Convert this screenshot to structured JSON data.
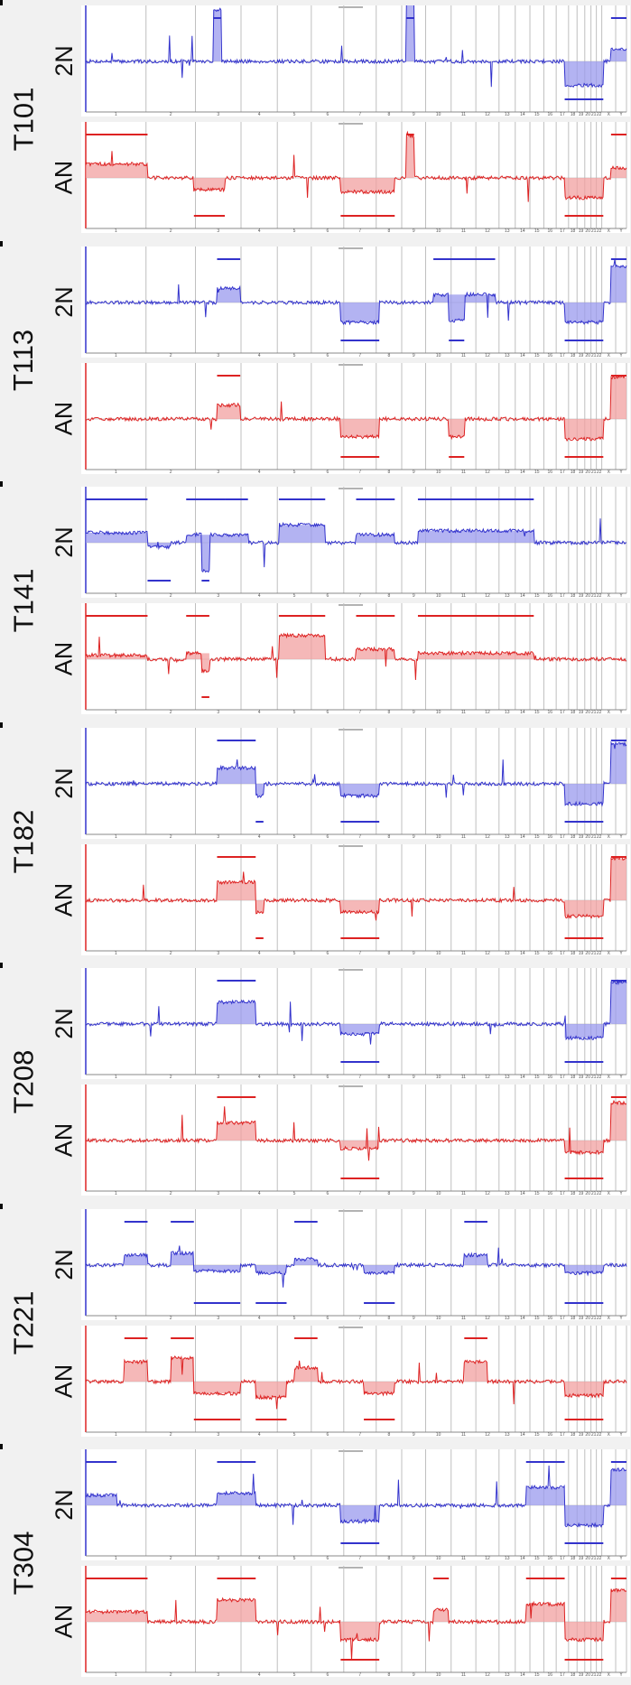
{
  "chart_data": {
    "type": "line",
    "description_of_layout": "",
    "chromosome_ticks": [
      "1",
      "2",
      "3",
      "4",
      "5",
      "6",
      "7",
      "8",
      "9",
      "10",
      "11",
      "12",
      "13",
      "14",
      "15",
      "16",
      "17",
      "18",
      "19",
      "20",
      "21",
      "22",
      "X",
      "Y"
    ],
    "series": [
      {
        "name": "2N",
        "color": "#3333cc",
        "fill": "#9a9aee"
      },
      {
        "name": "AN",
        "color": "#dd2222",
        "fill": "#f2a0a0"
      }
    ],
    "samples": [
      {
        "id": "T101",
        "rows": [
          {
            "label": "2N",
            "gains": [
              [
                16.5,
                17.5,
                2.6
              ],
              [
                41.5,
                42.5,
                3.2
              ],
              [
                68,
                70,
                0.6
              ]
            ],
            "losses": [
              [
                62,
                67,
                -1.2
              ]
            ]
          },
          {
            "label": "AN",
            "gains": [
              [
                0,
                8,
                0.7
              ],
              [
                41.5,
                42.5,
                2.1
              ],
              [
                68,
                70,
                0.5
              ]
            ],
            "losses": [
              [
                14,
                18,
                -0.6
              ],
              [
                33,
                40,
                -0.7
              ],
              [
                62,
                67,
                -1.0
              ]
            ]
          }
        ]
      },
      {
        "id": "T113",
        "rows": [
          {
            "label": "2N",
            "gains": [
              [
                17,
                20,
                0.7
              ],
              [
                45,
                53,
                0.4
              ],
              [
                68,
                70,
                1.8
              ]
            ],
            "losses": [
              [
                33,
                38,
                -1.0
              ],
              [
                47,
                49,
                -0.9
              ],
              [
                62,
                67,
                -1.0
              ]
            ]
          },
          {
            "label": "AN",
            "gains": [
              [
                17,
                20,
                0.7
              ],
              [
                68,
                70,
                2.1
              ]
            ],
            "losses": [
              [
                33,
                38,
                -0.9
              ],
              [
                47,
                49,
                -0.9
              ],
              [
                62,
                67,
                -1.0
              ]
            ]
          }
        ]
      },
      {
        "id": "T141",
        "rows": [
          {
            "label": "2N",
            "gains": [
              [
                0,
                8,
                0.5
              ],
              [
                13,
                18,
                0.4
              ],
              [
                18,
                21,
                0.4
              ],
              [
                25,
                31,
                0.9
              ],
              [
                35,
                40,
                0.4
              ],
              [
                43,
                58,
                0.6
              ]
            ],
            "losses": [
              [
                8,
                11,
                -0.2
              ],
              [
                15,
                16,
                -1.4
              ]
            ]
          },
          {
            "label": "AN",
            "gains": [
              [
                0,
                8,
                0.2
              ],
              [
                13,
                16,
                0.3
              ],
              [
                25,
                31,
                1.2
              ],
              [
                35,
                40,
                0.5
              ],
              [
                43,
                58,
                0.3
              ]
            ],
            "losses": [
              [
                15,
                16,
                -0.6
              ]
            ]
          }
        ]
      },
      {
        "id": "T182",
        "rows": [
          {
            "label": "2N",
            "gains": [
              [
                17,
                22,
                0.8
              ],
              [
                68,
                70,
                2.0
              ]
            ],
            "losses": [
              [
                22,
                23,
                -0.6
              ],
              [
                33,
                38,
                -0.6
              ],
              [
                62,
                67,
                -1.0
              ]
            ]
          },
          {
            "label": "AN",
            "gains": [
              [
                17,
                22,
                0.9
              ],
              [
                68,
                70,
                2.1
              ]
            ],
            "losses": [
              [
                22,
                23,
                -0.6
              ],
              [
                33,
                38,
                -0.6
              ],
              [
                62,
                67,
                -0.8
              ]
            ]
          }
        ]
      },
      {
        "id": "T208",
        "rows": [
          {
            "label": "2N",
            "gains": [
              [
                17,
                22,
                1.1
              ],
              [
                68,
                70,
                2.1
              ]
            ],
            "losses": [
              [
                33,
                38,
                -0.5
              ],
              [
                62,
                67,
                -0.7
              ]
            ]
          },
          {
            "label": "AN",
            "gains": [
              [
                17,
                22,
                0.9
              ],
              [
                68,
                70,
                1.9
              ]
            ],
            "losses": [
              [
                33,
                38,
                -0.4
              ],
              [
                62,
                67,
                -0.6
              ]
            ]
          }
        ]
      },
      {
        "id": "T221",
        "rows": [
          {
            "label": "2N",
            "gains": [
              [
                5,
                8,
                0.5
              ],
              [
                11,
                14,
                0.6
              ],
              [
                27,
                30,
                0.3
              ],
              [
                49,
                52,
                0.5
              ]
            ],
            "losses": [
              [
                14,
                20,
                -0.3
              ],
              [
                22,
                26,
                -0.4
              ],
              [
                36,
                40,
                -0.4
              ],
              [
                62,
                67,
                -0.4
              ]
            ]
          },
          {
            "label": "AN",
            "gains": [
              [
                5,
                8,
                1.0
              ],
              [
                11,
                14,
                1.2
              ],
              [
                27,
                30,
                0.7
              ],
              [
                49,
                52,
                1.0
              ]
            ],
            "losses": [
              [
                14,
                20,
                -0.6
              ],
              [
                22,
                26,
                -0.8
              ],
              [
                36,
                40,
                -0.6
              ],
              [
                62,
                67,
                -0.7
              ]
            ]
          }
        ]
      },
      {
        "id": "T304",
        "rows": [
          {
            "label": "2N",
            "gains": [
              [
                0,
                4,
                0.5
              ],
              [
                17,
                22,
                0.6
              ],
              [
                57,
                62,
                0.9
              ],
              [
                68,
                70,
                1.8
              ]
            ],
            "losses": [
              [
                33,
                38,
                -0.8
              ],
              [
                62,
                67,
                -1.0
              ]
            ]
          },
          {
            "label": "AN",
            "gains": [
              [
                0,
                8,
                0.5
              ],
              [
                17,
                22,
                1.1
              ],
              [
                45,
                47,
                0.6
              ],
              [
                57,
                62,
                0.9
              ],
              [
                68,
                70,
                1.6
              ]
            ],
            "losses": [
              [
                33,
                38,
                -0.9
              ],
              [
                62,
                67,
                -0.9
              ]
            ]
          }
        ]
      }
    ]
  }
}
